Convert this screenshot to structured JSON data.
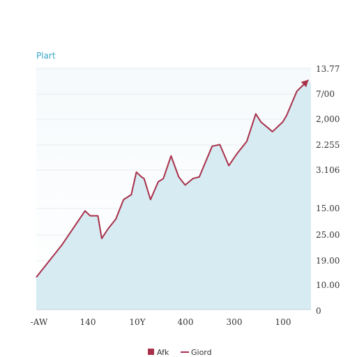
{
  "chart_data": {
    "type": "area",
    "title": "Plart",
    "x_tick_labels": [
      "-AW",
      "140",
      "10Y",
      "400",
      "300",
      "100"
    ],
    "y_tick_labels": [
      "13.77",
      "7/00",
      "2,000",
      "2.255",
      "3.106",
      "15.00",
      "25.00",
      "19.00",
      "10.00",
      "0"
    ],
    "series": [
      {
        "name": "Giord",
        "x": [
          0,
          4.0,
          5.2,
          7.6,
          8.4,
          9.6,
          10.2,
          11.2,
          12.4,
          13.6,
          14.8,
          15.6,
          16.4,
          16.8,
          17.8,
          19.0,
          19.8,
          21.0,
          22.2,
          23.2,
          24.4,
          25.4,
          27.4,
          28.6,
          30.0,
          31.2,
          32.8,
          34.2,
          35.0,
          36.8,
          38.4,
          39.0,
          40.6,
          42.4
        ],
        "y": [
          2.0,
          4.0,
          4.7,
          6.1,
          5.8,
          5.8,
          4.4,
          5.0,
          5.6,
          6.8,
          7.1,
          8.5,
          8.2,
          8.1,
          6.8,
          7.9,
          8.1,
          9.5,
          8.2,
          7.7,
          8.1,
          8.2,
          10.1,
          10.2,
          8.9,
          9.6,
          10.4,
          12.1,
          11.6,
          11.0,
          11.6,
          12.0,
          13.5,
          14.2
        ],
        "color": "#a8304a"
      }
    ],
    "legend": [
      {
        "label": "Afk",
        "marker": "square",
        "color": "#a8304a"
      },
      {
        "label": "Giord",
        "marker": "line",
        "color": "#a8304a"
      }
    ],
    "xlim": [
      0,
      42.8
    ],
    "ylim": [
      0,
      15
    ],
    "area_color": "#d6ebf2",
    "grid": true,
    "legend_position": "bottom",
    "title_color": "#3aa6c8"
  }
}
